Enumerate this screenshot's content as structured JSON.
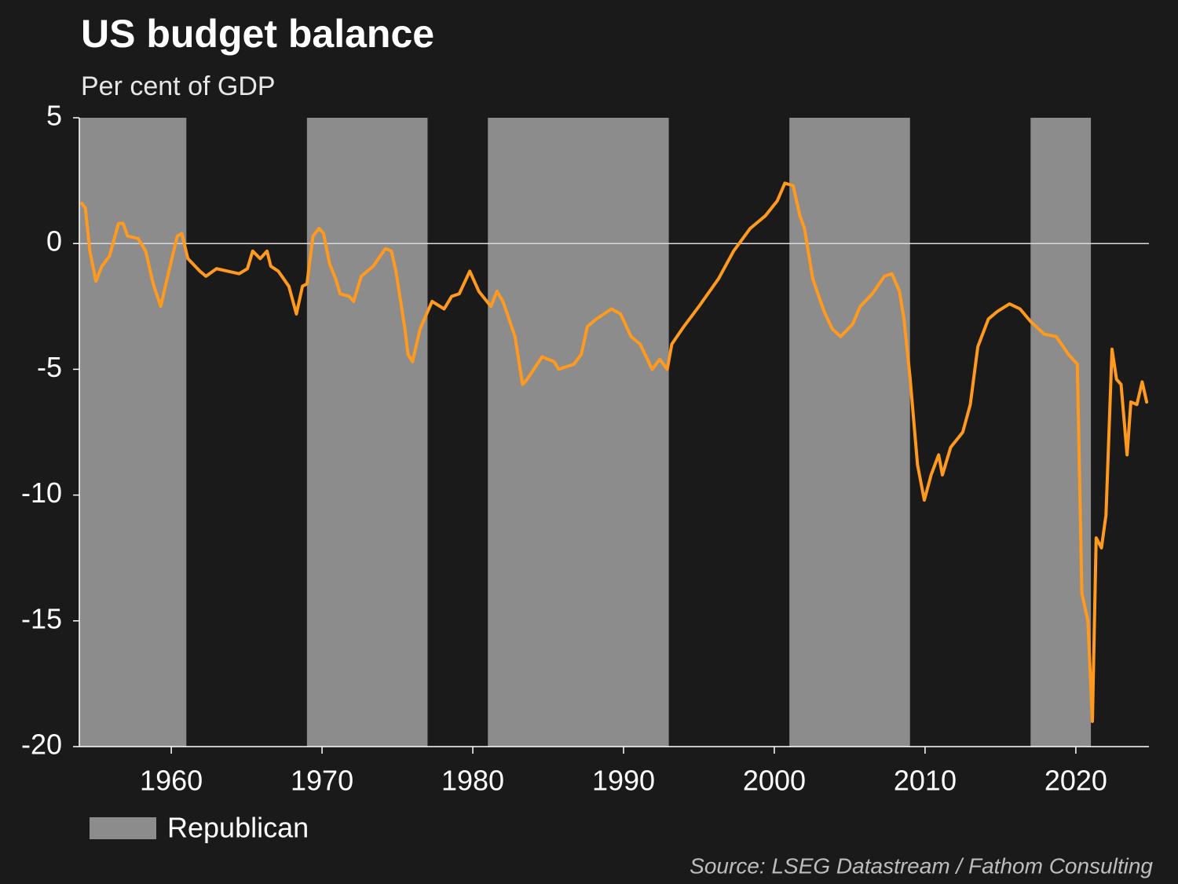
{
  "chart_data": {
    "type": "line",
    "title": "US budget balance",
    "subtitle": "Per cent of GDP",
    "source": "Source: LSEG Datastream / Fathom Consulting",
    "color": "#ff9a1f",
    "x": [
      1954.06,
      1954.3,
      1954.6,
      1955.0,
      1955.4,
      1955.9,
      1956.5,
      1956.8,
      1957.1,
      1957.8,
      1958.3,
      1958.8,
      1959.3,
      1959.8,
      1960.4,
      1960.7,
      1961.1,
      1961.9,
      1962.3,
      1963.0,
      1963.75,
      1964.5,
      1965.05,
      1965.4,
      1965.9,
      1966.35,
      1966.6,
      1967.1,
      1967.8,
      1968.3,
      1968.7,
      1969.0,
      1969.4,
      1969.8,
      1970.1,
      1970.5,
      1970.9,
      1971.2,
      1971.8,
      1972.1,
      1972.6,
      1973.4,
      1974.2,
      1974.6,
      1974.9,
      1975.5,
      1975.7,
      1976.0,
      1976.5,
      1977.3,
      1978.1,
      1978.6,
      1979.1,
      1979.8,
      1980.4,
      1981.2,
      1981.6,
      1982.0,
      1982.8,
      1983.3,
      1983.6,
      1984.6,
      1985.4,
      1985.7,
      1986.7,
      1987.2,
      1987.6,
      1988.2,
      1989.2,
      1989.8,
      1990.5,
      1991.1,
      1991.9,
      1992.4,
      1992.9,
      1993.2,
      1994.0,
      1995.0,
      1996.3,
      1997.3,
      1998.4,
      1999.4,
      2000.2,
      2000.7,
      2001.25,
      2001.7,
      2002.0,
      2002.55,
      2003.3,
      2003.85,
      2004.4,
      2005.2,
      2005.7,
      2006.5,
      2007.3,
      2007.8,
      2008.3,
      2008.6,
      2009.0,
      2009.5,
      2009.95,
      2010.4,
      2010.9,
      2011.15,
      2011.7,
      2012.5,
      2013.0,
      2013.5,
      2014.2,
      2014.8,
      2015.6,
      2016.3,
      2017.0,
      2017.9,
      2018.7,
      2019.5,
      2020.1,
      2020.4,
      2020.8,
      2021.1,
      2021.35,
      2021.7,
      2022.0,
      2022.4,
      2022.7,
      2023.0,
      2023.4,
      2023.65,
      2024.05,
      2024.4,
      2024.7
    ],
    "values": [
      1.6,
      1.4,
      -0.3,
      -1.5,
      -0.9,
      -0.5,
      0.8,
      0.8,
      0.3,
      0.2,
      -0.3,
      -1.6,
      -2.5,
      -1.2,
      0.3,
      0.4,
      -0.6,
      -1.1,
      -1.3,
      -1.0,
      -1.1,
      -1.2,
      -1.0,
      -0.3,
      -0.6,
      -0.3,
      -0.9,
      -1.1,
      -1.7,
      -2.8,
      -1.7,
      -1.6,
      0.3,
      0.6,
      0.4,
      -0.8,
      -1.4,
      -2.0,
      -2.1,
      -2.3,
      -1.3,
      -0.9,
      -0.2,
      -0.3,
      -1.1,
      -3.4,
      -4.4,
      -4.7,
      -3.4,
      -2.3,
      -2.6,
      -2.1,
      -2.0,
      -1.1,
      -1.9,
      -2.5,
      -1.9,
      -2.3,
      -3.7,
      -5.6,
      -5.4,
      -4.5,
      -4.7,
      -5.0,
      -4.8,
      -4.4,
      -3.3,
      -3.0,
      -2.6,
      -2.8,
      -3.7,
      -4.0,
      -5.0,
      -4.6,
      -5.0,
      -4.0,
      -3.3,
      -2.5,
      -1.4,
      -0.3,
      0.6,
      1.1,
      1.7,
      2.4,
      2.3,
      1.1,
      0.6,
      -1.4,
      -2.7,
      -3.4,
      -3.7,
      -3.2,
      -2.5,
      -2.0,
      -1.3,
      -1.2,
      -1.9,
      -3.0,
      -5.3,
      -8.8,
      -10.2,
      -9.2,
      -8.4,
      -9.2,
      -8.1,
      -7.5,
      -6.4,
      -4.1,
      -3.0,
      -2.7,
      -2.4,
      -2.6,
      -3.1,
      -3.6,
      -3.7,
      -4.4,
      -4.8,
      -13.9,
      -15.0,
      -19.0,
      -11.7,
      -12.1,
      -10.8,
      -4.2,
      -5.4,
      -5.6,
      -8.4,
      -6.3,
      -6.4,
      -5.5,
      -6.3
    ],
    "shaded_periods": {
      "label": "Republican",
      "color": "#8c8c8c",
      "ranges": [
        [
          1953,
          1961
        ],
        [
          1969,
          1977
        ],
        [
          1981,
          1993
        ],
        [
          2001,
          2009
        ],
        [
          2017,
          2021
        ]
      ]
    },
    "xlim": [
      1953.9,
      2024.85
    ],
    "xticks": [
      1960,
      1970,
      1980,
      1990,
      2000,
      2010,
      2020
    ],
    "ylim": [
      -20,
      5
    ],
    "yticks": [
      5,
      0,
      -5,
      -10,
      -15,
      -20
    ],
    "reference_line": 0
  }
}
